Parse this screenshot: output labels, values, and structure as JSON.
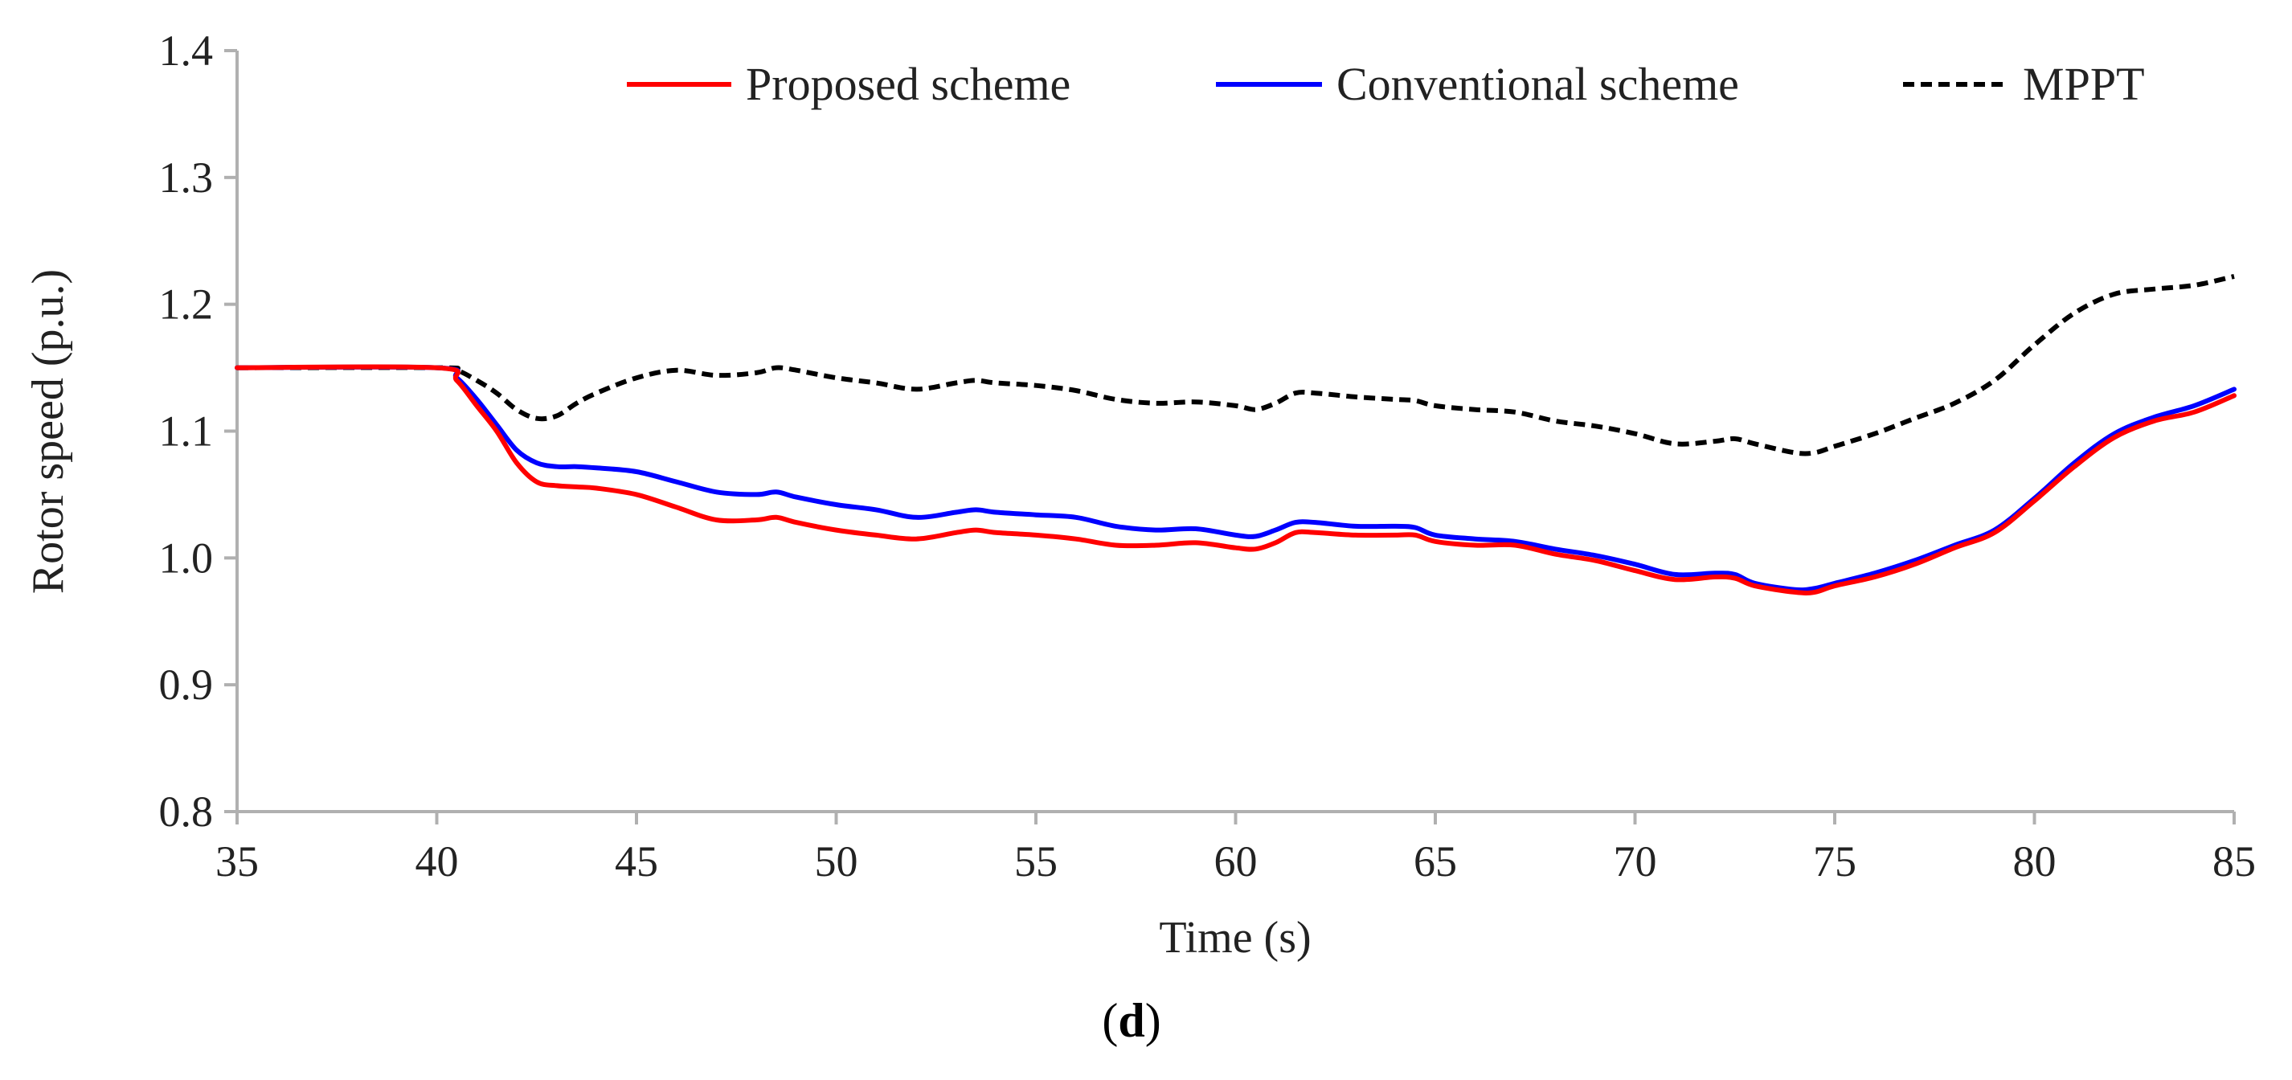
{
  "chart_data": {
    "type": "line",
    "xlabel": "Time (s)",
    "ylabel": "Rotor speed (p.u.)",
    "xlim": [
      35,
      85
    ],
    "ylim": [
      0.8,
      1.4
    ],
    "x_ticks": [
      35,
      40,
      45,
      50,
      55,
      60,
      65,
      70,
      75,
      80,
      85
    ],
    "x_tick_labels": [
      "35",
      "40",
      "45",
      "50",
      "55",
      "60",
      "65",
      "70",
      "75",
      "80",
      "85"
    ],
    "y_ticks": [
      0.8,
      0.9,
      1.0,
      1.1,
      1.2,
      1.3,
      1.4
    ],
    "y_tick_labels": [
      "0.8",
      "0.9",
      "1.0",
      "1.1",
      "1.2",
      "1.3",
      "1.4"
    ],
    "legend_position": "top",
    "grid": false,
    "series": [
      {
        "name": "Proposed scheme",
        "color": "#ff0000",
        "style": "solid",
        "x": [
          35,
          40,
          40.5,
          41,
          41.5,
          42,
          42.5,
          43,
          43.5,
          44,
          45,
          46,
          47,
          48,
          48.5,
          49,
          50,
          51,
          52,
          53,
          53.5,
          54,
          55,
          56,
          57,
          58,
          59,
          60,
          60.5,
          61,
          61.5,
          62,
          63,
          64,
          64.5,
          65,
          66,
          67,
          68,
          69,
          70,
          71,
          72,
          72.5,
          73,
          74,
          74.5,
          75,
          76,
          77,
          78,
          79,
          80,
          81,
          82,
          83,
          84,
          85
        ],
        "values": [
          1.15,
          1.15,
          1.14,
          1.12,
          1.1,
          1.075,
          1.06,
          1.057,
          1.056,
          1.055,
          1.05,
          1.04,
          1.03,
          1.03,
          1.032,
          1.028,
          1.022,
          1.018,
          1.015,
          1.02,
          1.022,
          1.02,
          1.018,
          1.015,
          1.01,
          1.01,
          1.012,
          1.008,
          1.007,
          1.012,
          1.02,
          1.02,
          1.018,
          1.018,
          1.018,
          1.013,
          1.01,
          1.01,
          1.003,
          0.998,
          0.99,
          0.983,
          0.985,
          0.984,
          0.978,
          0.973,
          0.973,
          0.978,
          0.985,
          0.995,
          1.008,
          1.02,
          1.045,
          1.072,
          1.095,
          1.108,
          1.115,
          1.128
        ]
      },
      {
        "name": "Conventional scheme",
        "color": "#0000ff",
        "style": "solid",
        "x": [
          35,
          40,
          40.5,
          41,
          41.5,
          42,
          42.5,
          43,
          43.5,
          44,
          45,
          46,
          47,
          48,
          48.5,
          49,
          50,
          51,
          52,
          53,
          53.5,
          54,
          55,
          56,
          57,
          58,
          59,
          60,
          60.5,
          61,
          61.5,
          62,
          63,
          64,
          64.5,
          65,
          66,
          67,
          68,
          69,
          70,
          71,
          72,
          72.5,
          73,
          74,
          74.5,
          75,
          76,
          77,
          78,
          79,
          80,
          81,
          82,
          83,
          84,
          85
        ],
        "values": [
          1.15,
          1.15,
          1.142,
          1.125,
          1.105,
          1.085,
          1.075,
          1.072,
          1.072,
          1.071,
          1.068,
          1.06,
          1.052,
          1.05,
          1.052,
          1.048,
          1.042,
          1.038,
          1.032,
          1.036,
          1.038,
          1.036,
          1.034,
          1.032,
          1.025,
          1.022,
          1.023,
          1.018,
          1.017,
          1.022,
          1.028,
          1.028,
          1.025,
          1.025,
          1.024,
          1.018,
          1.015,
          1.013,
          1.007,
          1.002,
          0.995,
          0.987,
          0.988,
          0.987,
          0.98,
          0.975,
          0.976,
          0.98,
          0.988,
          0.998,
          1.01,
          1.022,
          1.047,
          1.075,
          1.098,
          1.111,
          1.12,
          1.133
        ]
      },
      {
        "name": "MPPT",
        "color": "#000000",
        "style": "dashed",
        "x": [
          35,
          40,
          40.5,
          41,
          41.5,
          42,
          42.5,
          43,
          43.5,
          44,
          45,
          46,
          47,
          48,
          48.5,
          49,
          50,
          51,
          52,
          53,
          53.5,
          54,
          55,
          56,
          57,
          58,
          59,
          60,
          60.5,
          61,
          61.5,
          62,
          63,
          64,
          64.5,
          65,
          66,
          67,
          68,
          69,
          70,
          71,
          72,
          72.5,
          73,
          74,
          74.5,
          75,
          76,
          77,
          78,
          79,
          80,
          81,
          82,
          83,
          84,
          85
        ],
        "values": [
          1.15,
          1.15,
          1.148,
          1.14,
          1.13,
          1.117,
          1.11,
          1.112,
          1.122,
          1.13,
          1.142,
          1.148,
          1.144,
          1.146,
          1.15,
          1.148,
          1.142,
          1.138,
          1.133,
          1.138,
          1.14,
          1.138,
          1.136,
          1.132,
          1.125,
          1.122,
          1.123,
          1.12,
          1.117,
          1.122,
          1.13,
          1.13,
          1.127,
          1.125,
          1.124,
          1.12,
          1.117,
          1.115,
          1.108,
          1.104,
          1.098,
          1.09,
          1.092,
          1.094,
          1.09,
          1.083,
          1.083,
          1.088,
          1.098,
          1.11,
          1.122,
          1.14,
          1.168,
          1.193,
          1.208,
          1.212,
          1.215,
          1.222
        ]
      }
    ]
  },
  "caption": {
    "open": "(",
    "letter": "d",
    "close": ")"
  }
}
